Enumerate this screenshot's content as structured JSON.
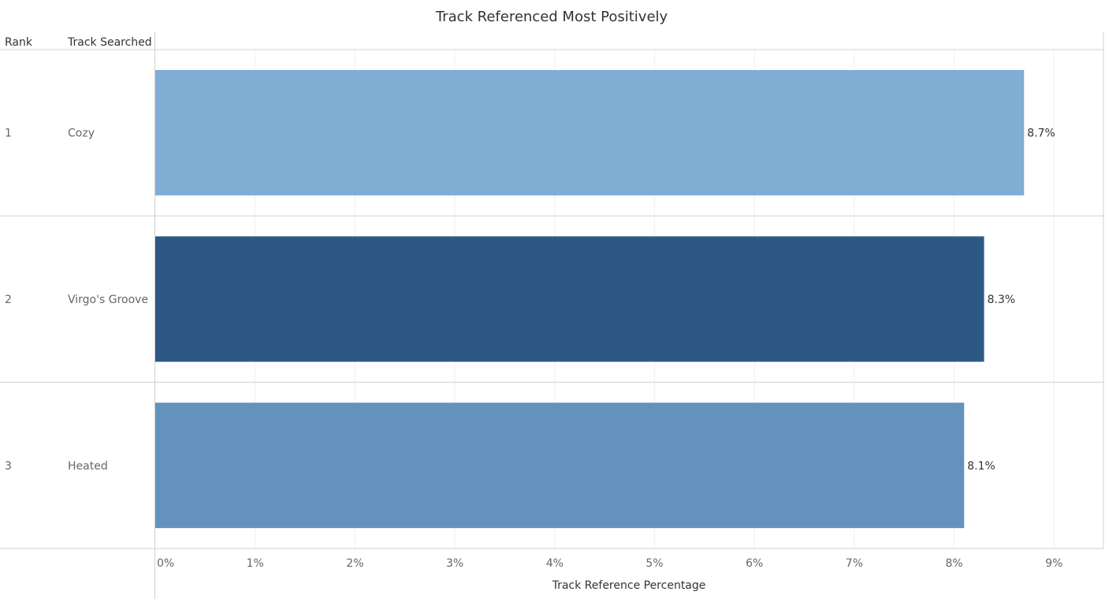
{
  "chart_data": {
    "type": "bar",
    "orientation": "horizontal",
    "title": "Track Referenced Most Positively",
    "xlabel": "Track Reference Percentage",
    "column_headers": [
      "Rank",
      "Track Searched"
    ],
    "xlim": [
      0,
      9.5
    ],
    "x_ticks": [
      0,
      1,
      2,
      3,
      4,
      5,
      6,
      7,
      8,
      9
    ],
    "x_tick_labels": [
      "0%",
      "1%",
      "2%",
      "3%",
      "4%",
      "5%",
      "6%",
      "7%",
      "8%",
      "9%"
    ],
    "grid": "vertical",
    "rows": [
      {
        "rank": "1",
        "track": "Cozy",
        "value": 8.7,
        "label": "8.7%",
        "color": "#7fadd4"
      },
      {
        "rank": "2",
        "track": "Virgo's Groove",
        "value": 8.3,
        "label": "8.3%",
        "color": "#2d5884"
      },
      {
        "rank": "3",
        "track": "Heated",
        "value": 8.1,
        "label": "8.1%",
        "color": "#6393bd"
      }
    ]
  }
}
